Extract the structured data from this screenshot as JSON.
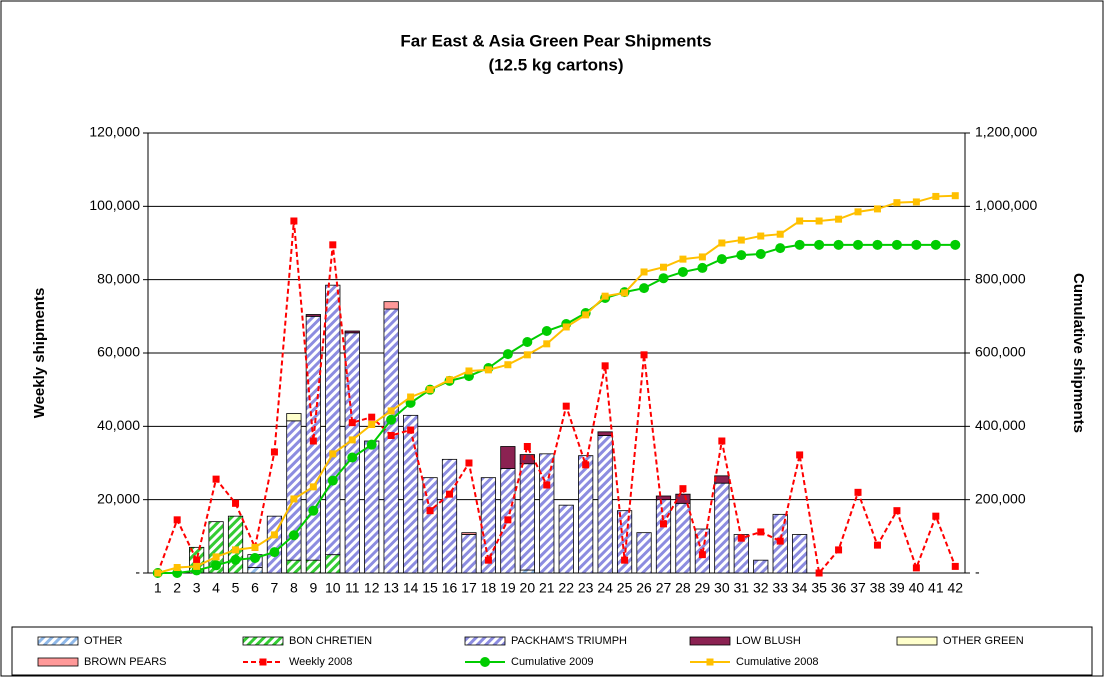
{
  "chart_data": {
    "type": "bar",
    "title": "Far East & Asia Green Pear Shipments",
    "subtitle": "(12.5 kg cartons)",
    "y_label": "Weekly shipments",
    "y2_label": "Cumulative shipments",
    "stacked": true,
    "categories": [
      "1",
      "2",
      "3",
      "4",
      "5",
      "6",
      "7",
      "8",
      "9",
      "10",
      "11",
      "12",
      "13",
      "14",
      "15",
      "16",
      "17",
      "18",
      "19",
      "20",
      "21",
      "22",
      "23",
      "24",
      "25",
      "26",
      "27",
      "28",
      "29",
      "30",
      "31",
      "32",
      "33",
      "34",
      "35",
      "36",
      "37",
      "38",
      "39",
      "40",
      "41",
      "42"
    ],
    "ylim": [
      0,
      120000
    ],
    "yticks": [
      {
        "value": 0,
        "label": "-"
      },
      {
        "value": 20000,
        "label": "20,000"
      },
      {
        "value": 40000,
        "label": "40,000"
      },
      {
        "value": 60000,
        "label": "60,000"
      },
      {
        "value": 80000,
        "label": "80,000"
      },
      {
        "value": 100000,
        "label": "100,000"
      },
      {
        "value": 120000,
        "label": "120,000"
      }
    ],
    "y2lim": [
      0,
      1200000
    ],
    "y2ticks": [
      {
        "value": 0,
        "label": "-"
      },
      {
        "value": 200000,
        "label": "200,000"
      },
      {
        "value": 400000,
        "label": "400,000"
      },
      {
        "value": 600000,
        "label": "600,000"
      },
      {
        "value": 800000,
        "label": "800,000"
      },
      {
        "value": 1000000,
        "label": "1,000,000"
      },
      {
        "value": 1200000,
        "label": "1,200,000"
      }
    ],
    "grid": true,
    "legend": "bottom",
    "series": [
      {
        "name": "OTHER",
        "type": "bar",
        "pattern": "stripes",
        "color": "#8fb8e8",
        "values": [
          0,
          0,
          0,
          0,
          0,
          1500,
          0,
          0,
          0,
          0,
          0,
          0,
          0,
          0,
          0,
          0,
          0,
          0,
          0,
          800,
          0,
          0,
          0,
          0,
          0,
          0,
          0,
          0,
          0,
          0,
          0,
          0,
          0,
          0,
          0,
          0,
          0,
          0,
          0,
          0,
          0,
          0
        ]
      },
      {
        "name": "BON CHRETIEN",
        "type": "bar",
        "pattern": "stripes",
        "color": "#33cc33",
        "values": [
          0,
          0,
          7000,
          14000,
          15500,
          0,
          0,
          3500,
          3500,
          5000,
          0,
          0,
          0,
          0,
          0,
          0,
          0,
          0,
          0,
          0,
          0,
          0,
          0,
          0,
          0,
          0,
          0,
          0,
          0,
          0,
          0,
          0,
          0,
          0,
          0,
          0,
          0,
          0,
          0,
          0,
          0,
          0
        ]
      },
      {
        "name": "PACKHAM'S  TRIUMPH",
        "type": "bar",
        "pattern": "stripes",
        "color": "#8c8ce0",
        "values": [
          0,
          0,
          0,
          0,
          0,
          3500,
          15500,
          38000,
          66500,
          73500,
          65500,
          36000,
          72000,
          43000,
          26000,
          31000,
          10500,
          26000,
          28500,
          29000,
          32500,
          18500,
          32000,
          37500,
          17000,
          11000,
          20000,
          19000,
          12000,
          24500,
          10500,
          3500,
          16000,
          10500,
          0,
          0,
          0,
          0,
          0,
          0,
          0,
          0
        ]
      },
      {
        "name": "LOW BLUSH",
        "type": "bar",
        "pattern": "solid",
        "color": "#8b2252",
        "values": [
          0,
          0,
          0,
          0,
          0,
          0,
          0,
          0,
          500,
          0,
          500,
          0,
          0,
          0,
          0,
          0,
          0,
          0,
          6000,
          2500,
          0,
          0,
          0,
          1000,
          0,
          0,
          1000,
          2500,
          0,
          2000,
          0,
          0,
          0,
          0,
          0,
          0,
          0,
          0,
          0,
          0,
          0,
          0
        ]
      },
      {
        "name": "OTHER GREEN",
        "type": "bar",
        "pattern": "solid",
        "color": "#ffffcc",
        "values": [
          0,
          0,
          0,
          0,
          0,
          0,
          0,
          2000,
          0,
          0,
          0,
          0,
          0,
          0,
          0,
          0,
          0,
          0,
          0,
          0,
          0,
          0,
          0,
          0,
          0,
          0,
          0,
          0,
          0,
          0,
          0,
          0,
          0,
          0,
          0,
          0,
          0,
          0,
          0,
          0,
          0,
          0
        ]
      },
      {
        "name": "BROWN PEARS",
        "type": "bar",
        "pattern": "solid",
        "color": "#ff9999",
        "values": [
          0,
          0,
          0,
          0,
          0,
          0,
          0,
          0,
          0,
          0,
          0,
          0,
          2000,
          0,
          0,
          0,
          500,
          0,
          0,
          0,
          0,
          0,
          0,
          0,
          0,
          0,
          0,
          0,
          0,
          0,
          0,
          0,
          0,
          0,
          0,
          0,
          0,
          0,
          0,
          0,
          0,
          0
        ]
      },
      {
        "name": "Weekly 2008",
        "type": "line",
        "axis": "y",
        "dashed": true,
        "marker": "square",
        "color": "#ff0000",
        "values": [
          0,
          14500,
          3500,
          25600,
          19000,
          7000,
          33000,
          96000,
          36000,
          89500,
          41000,
          42500,
          37500,
          39000,
          17000,
          21500,
          30000,
          3500,
          14500,
          34500,
          24000,
          45500,
          29500,
          56500,
          3500,
          59500,
          13400,
          23000,
          5000,
          36000,
          9500,
          11200,
          8700,
          32200,
          0,
          6300,
          22000,
          7600,
          17000,
          1400,
          15500,
          1800
        ]
      },
      {
        "name": "Cumulative 2009",
        "type": "line",
        "axis": "y2",
        "dashed": false,
        "marker": "circle",
        "color": "#00cc00",
        "values": [
          0,
          0,
          7000,
          21000,
          36000,
          41000,
          57000,
          103000,
          170000,
          252000,
          315000,
          350000,
          418000,
          464000,
          500000,
          524000,
          537000,
          559000,
          597000,
          630000,
          660000,
          679000,
          709000,
          750000,
          766000,
          777000,
          804000,
          821000,
          832000,
          856000,
          867000,
          870000,
          886000,
          895000,
          895000,
          895000,
          895000,
          895000,
          895000,
          895000,
          895000,
          895000
        ]
      },
      {
        "name": "Cumulative 2008",
        "type": "line",
        "axis": "y2",
        "dashed": false,
        "marker": "square",
        "color": "#ffc000",
        "values": [
          0,
          15000,
          18000,
          44000,
          63000,
          70000,
          104000,
          202000,
          235000,
          325000,
          363000,
          405000,
          442000,
          480000,
          500000,
          527000,
          551000,
          554000,
          568000,
          595000,
          625000,
          671000,
          704000,
          755000,
          764000,
          821000,
          834000,
          856000,
          862000,
          900000,
          908000,
          919000,
          924000,
          960000,
          960000,
          965000,
          985000,
          993000,
          1010000,
          1012000,
          1027000,
          1029000
        ]
      }
    ]
  }
}
